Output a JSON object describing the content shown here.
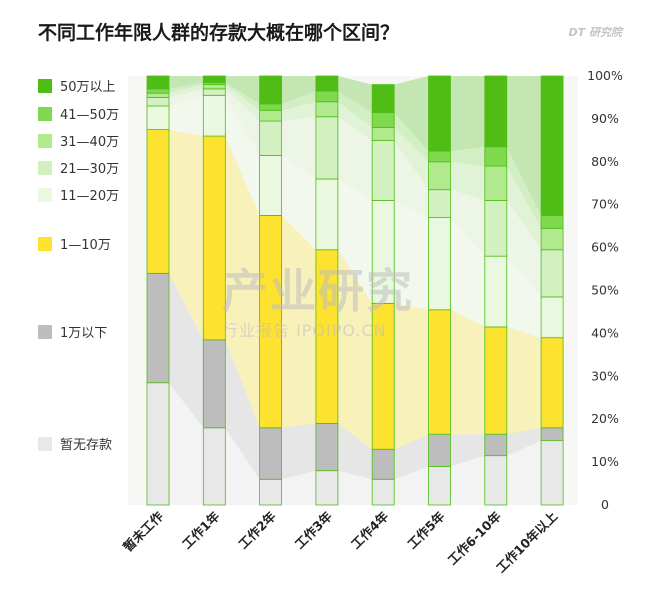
{
  "header": {
    "title": "不同工作年限人群的存款大概在哪个区间？",
    "brand": "DT 研究院"
  },
  "watermark": {
    "main": "产业研究",
    "sub": "行业报告 IPOIPO.CN"
  },
  "colors": {
    "no_savings": "#e8e8e8",
    "below_1w": "#bdbdbd",
    "w1_10": "#fde330",
    "w11_20": "#eaf8df",
    "w21_30": "#d3f0c0",
    "w31_40": "#b1e98f",
    "w41_50": "#7fd84d",
    "above_50": "#4fbd16"
  },
  "chart_data": {
    "type": "bar",
    "stacked": true,
    "percent": true,
    "categories": [
      "暂未工作",
      "工作1年",
      "工作2年",
      "工作3年",
      "工作4年",
      "工作5年",
      "工作6-10年",
      "工作10年以上"
    ],
    "series": [
      {
        "name": "暂无存款",
        "key": "no_savings",
        "values": [
          28.5,
          18,
          6,
          8,
          6,
          9,
          11.5,
          15
        ]
      },
      {
        "name": "1万以下",
        "key": "below_1w",
        "values": [
          25.5,
          20.5,
          12,
          11,
          7,
          7.5,
          5,
          3
        ]
      },
      {
        "name": "1—10万",
        "key": "w1_10",
        "values": [
          33.5,
          47.5,
          49.5,
          40.5,
          34,
          29,
          25,
          21
        ]
      },
      {
        "name": "11—20万",
        "key": "w11_20",
        "values": [
          5.5,
          9.5,
          14,
          16.5,
          24,
          21.5,
          16.5,
          9.5
        ]
      },
      {
        "name": "21—30万",
        "key": "w21_30",
        "values": [
          2,
          1.5,
          8,
          14.5,
          14,
          6.5,
          13,
          11
        ]
      },
      {
        "name": "31—40万",
        "key": "w31_40",
        "values": [
          1,
          1,
          2.5,
          3.5,
          3,
          6.5,
          8,
          5
        ]
      },
      {
        "name": "41—50万",
        "key": "w41_50",
        "values": [
          1,
          0.5,
          1.5,
          2.5,
          3.5,
          2.5,
          4.5,
          3
        ]
      },
      {
        "name": "50万以上",
        "key": "above_50",
        "values": [
          3,
          1.5,
          6.5,
          3.5,
          6.5,
          17.5,
          16.5,
          32.5
        ]
      }
    ],
    "y_ticks": [
      "0",
      "10%",
      "20%",
      "30%",
      "40%",
      "50%",
      "60%",
      "70%",
      "80%",
      "90%",
      "100%"
    ],
    "ylim": [
      0,
      100
    ],
    "legend_position": "left",
    "legend_order": [
      "50万以上",
      "41—50万",
      "31—40万",
      "21—30万",
      "11—20万",
      "1—10万",
      "1万以下",
      "暂无存款"
    ]
  }
}
